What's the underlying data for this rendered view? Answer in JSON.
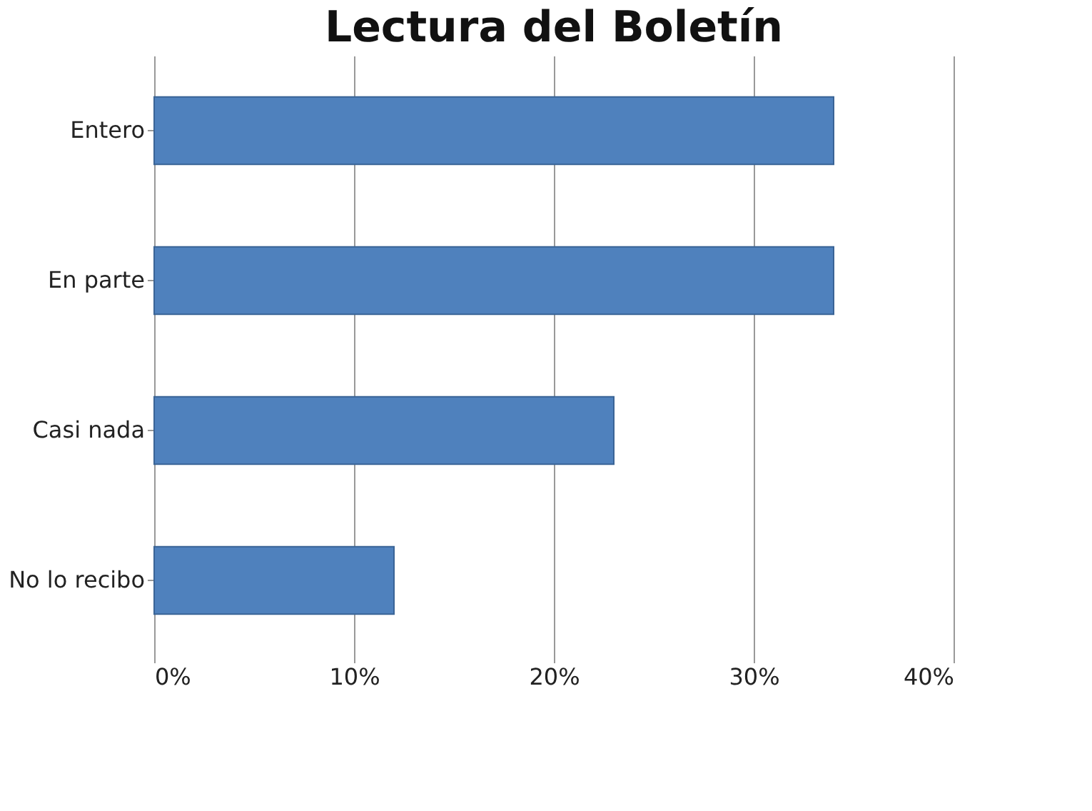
{
  "chart_data": {
    "type": "bar",
    "orientation": "horizontal",
    "title": "Lectura del Boletín",
    "categories": [
      "Entero",
      "En parte",
      "Casi nada",
      "No lo recibo"
    ],
    "values": [
      34,
      34,
      23,
      12
    ],
    "color": "#4f81bd",
    "xlim": [
      0,
      40
    ],
    "xticks": [
      {
        "value": 0,
        "label": "0%"
      },
      {
        "value": 10,
        "label": "10%"
      },
      {
        "value": 20,
        "label": "20%"
      },
      {
        "value": 30,
        "label": "30%"
      },
      {
        "value": 40,
        "label": "40%"
      }
    ],
    "grid": "x"
  }
}
